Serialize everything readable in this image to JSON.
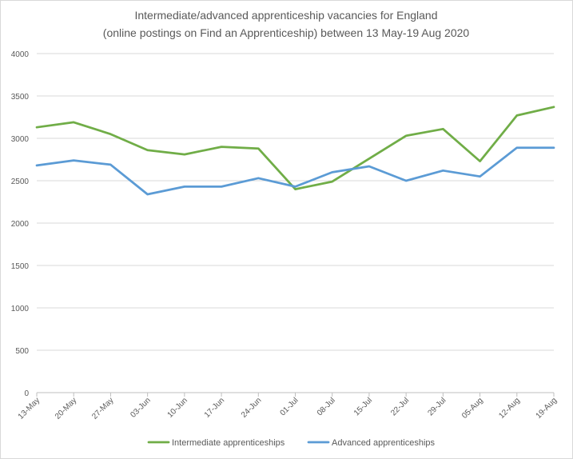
{
  "chart_data": {
    "type": "line",
    "title_lines": [
      "Intermediate/advanced apprenticeship vacancies for England",
      "(online postings on Find an Apprenticeship) between 13 May-19 Aug 2020"
    ],
    "categories": [
      "13-May",
      "20-May",
      "27-May",
      "03-Jun",
      "10-Jun",
      "17-Jun",
      "24-Jun",
      "01-Jul",
      "08-Jul",
      "15-Jul",
      "22-Jul",
      "29-Jul",
      "05-Aug",
      "12-Aug",
      "19-Aug"
    ],
    "y_ticks": [
      "0",
      "500",
      "1000",
      "1500",
      "2000",
      "2500",
      "3000",
      "3500",
      "4000"
    ],
    "ylim": [
      0,
      4000
    ],
    "grid": true,
    "legend_position": "bottom",
    "series": [
      {
        "name": "Intermediate apprenticeships",
        "color": "#70ad47",
        "values": [
          3130,
          3190,
          3050,
          2860,
          2810,
          2900,
          2880,
          2400,
          2490,
          2760,
          3030,
          3110,
          2730,
          3270,
          3370
        ]
      },
      {
        "name": "Advanced apprenticeships",
        "color": "#5b9bd5",
        "values": [
          2680,
          2740,
          2690,
          2340,
          2430,
          2430,
          2530,
          2430,
          2600,
          2670,
          2500,
          2620,
          2550,
          2890,
          2890
        ]
      }
    ]
  }
}
